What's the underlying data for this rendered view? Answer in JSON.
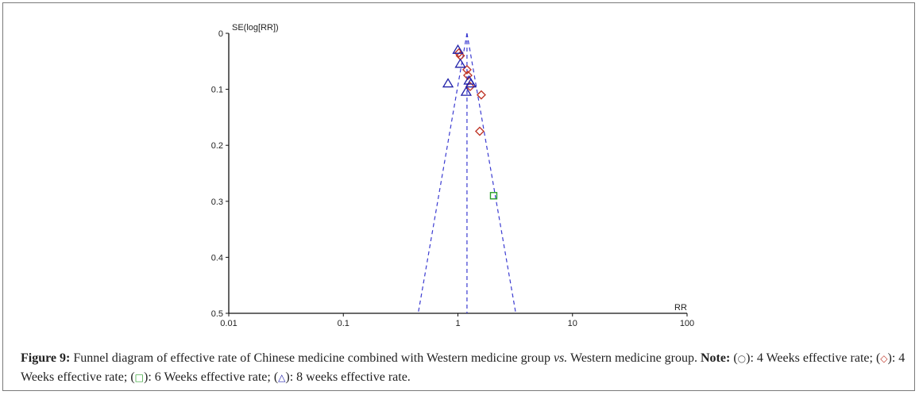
{
  "chart_data": {
    "type": "scatter",
    "subtype": "funnel",
    "ylabel": "SE(log[RR])",
    "xlabel": "RR",
    "x_scale": "log",
    "xlim": [
      0.01,
      100
    ],
    "ylim": [
      0,
      0.5
    ],
    "y_inverted": true,
    "x_ticks": [
      "0.01",
      "0.1",
      "1",
      "10",
      "100"
    ],
    "x_tick_values": [
      0.01,
      0.1,
      1,
      10,
      100
    ],
    "y_ticks": [
      "0",
      "0.1",
      "0.2",
      "0.3",
      "0.4",
      "0.5"
    ],
    "y_tick_values": [
      0,
      0.1,
      0.2,
      0.3,
      0.4,
      0.5
    ],
    "pooled_rr": 1.2,
    "funnel_bounds_at_max_se": [
      0.45,
      3.2
    ],
    "series": [
      {
        "name": "4 Weeks effective rate (diamond)",
        "marker": "diamond",
        "color": "#c0392b",
        "points": [
          {
            "rr": 1.02,
            "se": 0.035
          },
          {
            "rr": 1.05,
            "se": 0.04
          },
          {
            "rr": 1.2,
            "se": 0.065
          },
          {
            "rr": 1.22,
            "se": 0.075
          },
          {
            "rr": 1.28,
            "se": 0.095
          },
          {
            "rr": 1.6,
            "se": 0.11
          },
          {
            "rr": 1.55,
            "se": 0.175
          }
        ]
      },
      {
        "name": "6 Weeks effective rate (square)",
        "marker": "square",
        "color": "#2ca02c",
        "points": [
          {
            "rr": 2.05,
            "se": 0.29
          }
        ]
      },
      {
        "name": "8 weeks effective rate (triangle)",
        "marker": "triangle",
        "color": "#1f1fa8",
        "points": [
          {
            "rr": 1.0,
            "se": 0.03
          },
          {
            "rr": 1.05,
            "se": 0.055
          },
          {
            "rr": 0.82,
            "se": 0.09
          },
          {
            "rr": 1.25,
            "se": 0.085
          },
          {
            "rr": 1.3,
            "se": 0.09
          },
          {
            "rr": 1.18,
            "se": 0.105
          }
        ]
      }
    ]
  },
  "caption": {
    "label": "Figure 9:",
    "text": "Funnel diagram of effective rate of Chinese medicine combined with Western medicine group",
    "vs": "vs.",
    "text2": "Western medicine group.",
    "note_label": "Note:",
    "legend": [
      {
        "symbol": "○",
        "text": ": 4 Weeks effective rate;"
      },
      {
        "symbol": "◇",
        "text": ": 4 Weeks effective rate;"
      },
      {
        "symbol": "□",
        "text": ": 6 Weeks effective rate;"
      },
      {
        "symbol": "△",
        "text": ": 8 weeks effective rate."
      }
    ]
  },
  "colors": {
    "funnel": "#3b3bd1",
    "axis": "#111111",
    "diamond": "#c0392b",
    "square": "#2ca02c",
    "triangle": "#1f1fa8"
  }
}
